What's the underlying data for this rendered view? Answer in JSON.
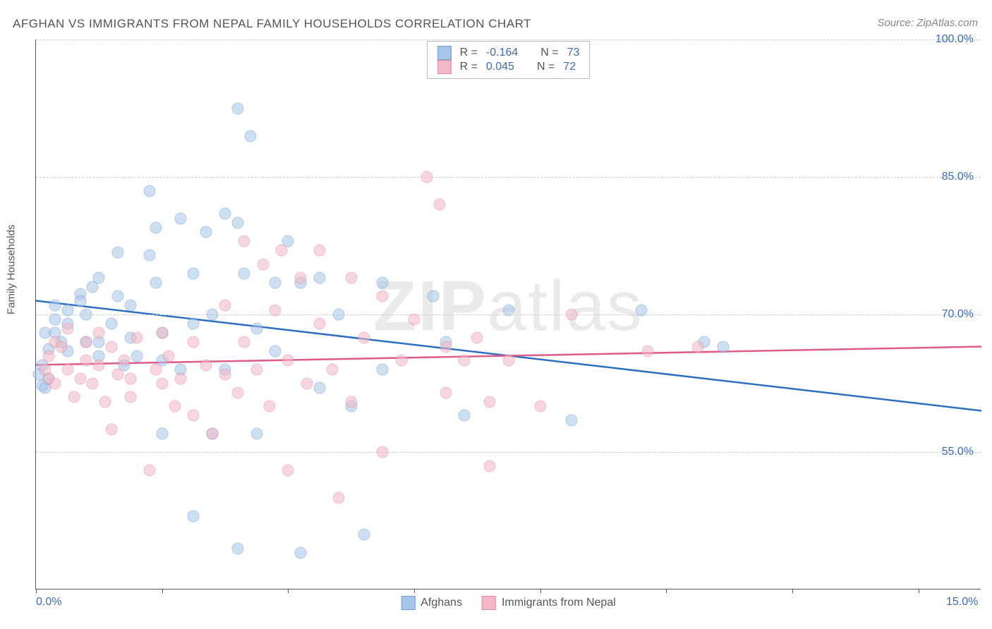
{
  "title": "AFGHAN VS IMMIGRANTS FROM NEPAL FAMILY HOUSEHOLDS CORRELATION CHART",
  "source": "Source: ZipAtlas.com",
  "y_axis_label": "Family Households",
  "watermark_a": "ZIP",
  "watermark_b": "atlas",
  "chart": {
    "type": "scatter",
    "xlim": [
      0,
      15
    ],
    "ylim": [
      40,
      100
    ],
    "x_ticks": [
      0,
      2,
      4,
      6,
      8,
      10,
      12,
      14
    ],
    "y_gridlines": [
      55,
      70,
      85,
      100
    ],
    "x_tick_labels": {
      "0": "0.0%",
      "15": "15.0%"
    },
    "y_tick_labels": {
      "55": "55.0%",
      "70": "70.0%",
      "85": "85.0%",
      "100": "100.0%"
    },
    "background_color": "#ffffff",
    "grid_color": "#cccccc"
  },
  "series": [
    {
      "name": "Afghans",
      "fill": "#a7c5e8",
      "stroke": "#6fa0d8",
      "line_color": "#2d6fc1",
      "R": "-0.164",
      "N": "73",
      "trend": {
        "y_at_x0": 71.5,
        "y_at_x15": 59.5
      },
      "points": [
        [
          0.05,
          63.5
        ],
        [
          0.1,
          62.2
        ],
        [
          0.1,
          64.5
        ],
        [
          0.15,
          62.0
        ],
        [
          0.2,
          66.2
        ],
        [
          0.2,
          63.0
        ],
        [
          0.15,
          68.0
        ],
        [
          0.3,
          69.5
        ],
        [
          0.3,
          71.0
        ],
        [
          0.3,
          68.0
        ],
        [
          0.4,
          67.0
        ],
        [
          0.5,
          70.5
        ],
        [
          0.5,
          69.0
        ],
        [
          0.5,
          66.0
        ],
        [
          0.7,
          72.2
        ],
        [
          0.7,
          71.5
        ],
        [
          0.8,
          67.0
        ],
        [
          0.8,
          70.0
        ],
        [
          0.9,
          73.0
        ],
        [
          1.0,
          74.0
        ],
        [
          1.0,
          65.5
        ],
        [
          1.0,
          67.0
        ],
        [
          1.2,
          69.0
        ],
        [
          1.3,
          76.8
        ],
        [
          1.3,
          72.0
        ],
        [
          1.4,
          64.5
        ],
        [
          1.5,
          71.0
        ],
        [
          1.5,
          67.5
        ],
        [
          1.6,
          65.5
        ],
        [
          1.8,
          83.5
        ],
        [
          1.8,
          76.5
        ],
        [
          1.9,
          73.5
        ],
        [
          1.9,
          79.5
        ],
        [
          2.0,
          68.0
        ],
        [
          2.0,
          65.0
        ],
        [
          2.0,
          57.0
        ],
        [
          2.3,
          80.5
        ],
        [
          2.3,
          64.0
        ],
        [
          2.5,
          74.5
        ],
        [
          2.5,
          69.0
        ],
        [
          2.5,
          48.0
        ],
        [
          2.7,
          79.0
        ],
        [
          2.8,
          70.0
        ],
        [
          2.8,
          57.0
        ],
        [
          3.0,
          81.0
        ],
        [
          3.0,
          64.0
        ],
        [
          3.2,
          92.5
        ],
        [
          3.2,
          80.0
        ],
        [
          3.2,
          44.5
        ],
        [
          3.3,
          74.5
        ],
        [
          3.4,
          89.5
        ],
        [
          3.5,
          68.5
        ],
        [
          3.5,
          57.0
        ],
        [
          3.8,
          73.5
        ],
        [
          3.8,
          66.0
        ],
        [
          4.0,
          78.0
        ],
        [
          4.2,
          73.5
        ],
        [
          4.2,
          44.0
        ],
        [
          4.5,
          74.0
        ],
        [
          4.5,
          62.0
        ],
        [
          4.8,
          70.0
        ],
        [
          5.0,
          60.0
        ],
        [
          5.2,
          46.0
        ],
        [
          5.5,
          73.5
        ],
        [
          5.5,
          64.0
        ],
        [
          6.3,
          72.0
        ],
        [
          6.5,
          67.0
        ],
        [
          6.8,
          59.0
        ],
        [
          7.5,
          70.5
        ],
        [
          8.5,
          58.5
        ],
        [
          9.6,
          70.5
        ],
        [
          10.6,
          67.0
        ],
        [
          10.9,
          66.5
        ]
      ]
    },
    {
      "name": "Immigrants from Nepal",
      "fill": "#f2b8c6",
      "stroke": "#e88aa3",
      "line_color": "#e05a8a",
      "R": "0.045",
      "N": "72",
      "trend": {
        "y_at_x0": 64.5,
        "y_at_x15": 66.5
      },
      "points": [
        [
          0.15,
          64.0
        ],
        [
          0.2,
          65.5
        ],
        [
          0.2,
          63.0
        ],
        [
          0.3,
          62.5
        ],
        [
          0.3,
          67.0
        ],
        [
          0.4,
          66.5
        ],
        [
          0.5,
          68.5
        ],
        [
          0.5,
          64.0
        ],
        [
          0.6,
          61.0
        ],
        [
          0.7,
          63.0
        ],
        [
          0.8,
          67.0
        ],
        [
          0.8,
          65.0
        ],
        [
          0.9,
          62.5
        ],
        [
          1.0,
          64.5
        ],
        [
          1.0,
          68.0
        ],
        [
          1.1,
          60.5
        ],
        [
          1.2,
          66.5
        ],
        [
          1.2,
          57.5
        ],
        [
          1.3,
          63.5
        ],
        [
          1.4,
          65.0
        ],
        [
          1.5,
          63.0
        ],
        [
          1.5,
          61.0
        ],
        [
          1.6,
          67.5
        ],
        [
          1.8,
          53.0
        ],
        [
          1.9,
          64.0
        ],
        [
          2.0,
          62.5
        ],
        [
          2.0,
          68.0
        ],
        [
          2.1,
          65.5
        ],
        [
          2.2,
          60.0
        ],
        [
          2.3,
          63.0
        ],
        [
          2.5,
          59.0
        ],
        [
          2.5,
          67.0
        ],
        [
          2.7,
          64.5
        ],
        [
          2.8,
          57.0
        ],
        [
          3.0,
          63.5
        ],
        [
          3.0,
          71.0
        ],
        [
          3.2,
          61.5
        ],
        [
          3.3,
          67.0
        ],
        [
          3.3,
          78.0
        ],
        [
          3.5,
          64.0
        ],
        [
          3.6,
          75.5
        ],
        [
          3.7,
          60.0
        ],
        [
          3.8,
          70.5
        ],
        [
          3.9,
          77.0
        ],
        [
          4.0,
          65.0
        ],
        [
          4.0,
          53.0
        ],
        [
          4.2,
          74.0
        ],
        [
          4.3,
          62.5
        ],
        [
          4.5,
          69.0
        ],
        [
          4.5,
          77.0
        ],
        [
          4.7,
          64.0
        ],
        [
          4.8,
          50.0
        ],
        [
          5.0,
          74.0
        ],
        [
          5.0,
          60.5
        ],
        [
          5.2,
          67.5
        ],
        [
          5.5,
          55.0
        ],
        [
          5.5,
          72.0
        ],
        [
          5.8,
          65.0
        ],
        [
          6.0,
          69.5
        ],
        [
          6.2,
          85.0
        ],
        [
          6.4,
          82.0
        ],
        [
          6.5,
          66.5
        ],
        [
          6.5,
          61.5
        ],
        [
          6.8,
          65.0
        ],
        [
          7.0,
          67.5
        ],
        [
          7.2,
          53.5
        ],
        [
          7.2,
          60.5
        ],
        [
          7.5,
          65.0
        ],
        [
          8.0,
          60.0
        ],
        [
          8.5,
          70.0
        ],
        [
          9.7,
          66.0
        ],
        [
          10.5,
          66.5
        ]
      ]
    }
  ],
  "stats_legend": {
    "R_label": "R =",
    "N_label": "N ="
  }
}
